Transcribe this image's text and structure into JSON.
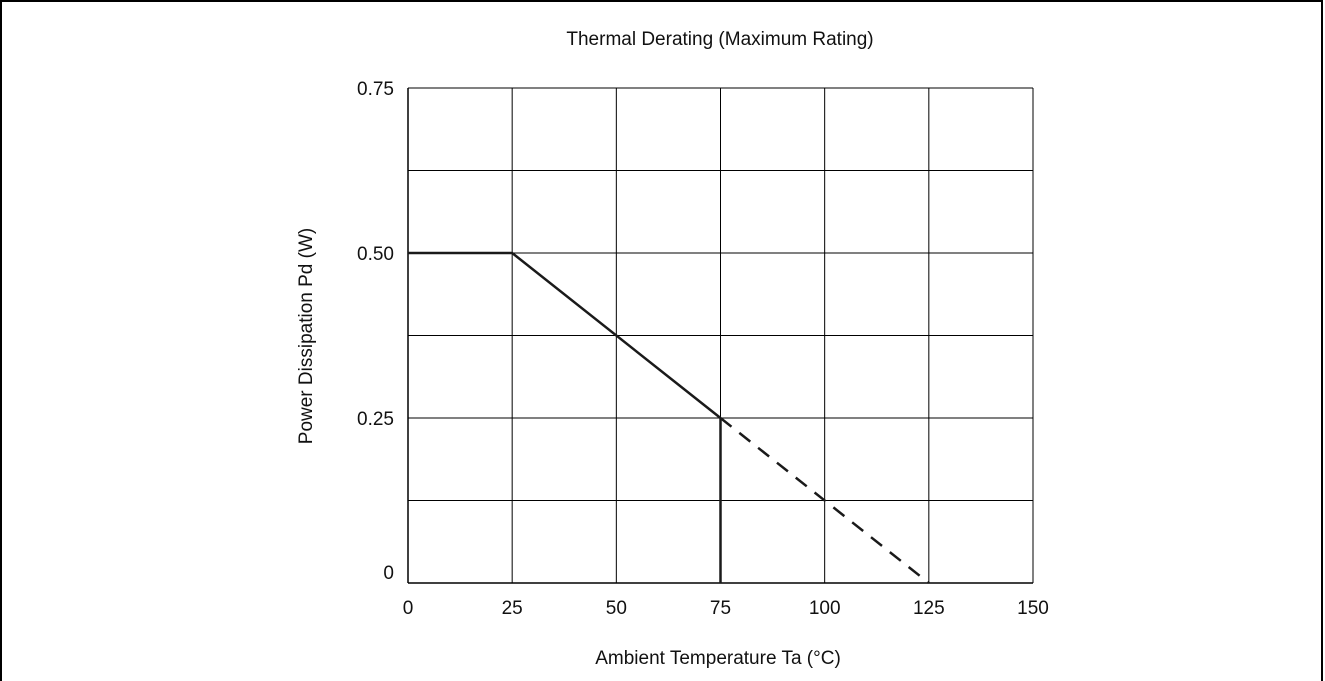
{
  "chart_data": {
    "type": "line",
    "title": "Thermal Derating (Maximum Rating)",
    "xlabel": "Ambient Temperature   Ta  (°C)",
    "ylabel": "Power Dissipation   Pd   (W)",
    "xlim": [
      0,
      150
    ],
    "ylim": [
      0,
      0.75
    ],
    "x_ticks": [
      0,
      25,
      50,
      75,
      100,
      125,
      150
    ],
    "x_tick_labels": [
      "0",
      "25",
      "50",
      "75",
      "100",
      "125",
      "150"
    ],
    "y_ticks": [
      0,
      0.25,
      0.5,
      0.75
    ],
    "y_tick_labels": [
      "0",
      "0.25",
      "0.50",
      "0.75"
    ],
    "grid": true,
    "series": [
      {
        "style": "solid",
        "x": [
          0,
          25,
          75
        ],
        "y": [
          0.5,
          0.5,
          0.25
        ]
      },
      {
        "style": "solid",
        "x": [
          75,
          75
        ],
        "y": [
          0.25,
          0
        ]
      },
      {
        "style": "dashed",
        "x": [
          75,
          125
        ],
        "y": [
          0.25,
          0
        ]
      }
    ]
  }
}
